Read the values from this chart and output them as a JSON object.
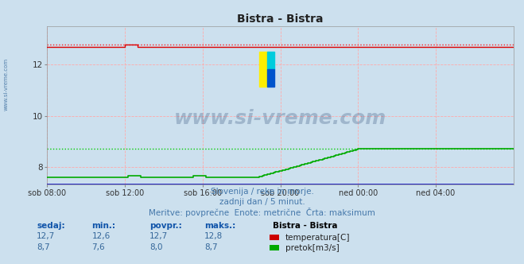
{
  "title": "Bistra - Bistra",
  "background_color": "#cce0ee",
  "plot_bg_color": "#cce0ee",
  "xlim": [
    0,
    288
  ],
  "ylim": [
    7.3,
    13.5
  ],
  "yticks": [
    8,
    10,
    12
  ],
  "x_tick_labels": [
    "sob 08:00",
    "sob 12:00",
    "sob 16:00",
    "sob 20:00",
    "ned 00:00",
    "ned 04:00"
  ],
  "x_tick_positions": [
    0,
    48,
    96,
    144,
    192,
    240
  ],
  "grid_color": "#ffaaaa",
  "temperature_color": "#dd0000",
  "temperature_max_color": "#ff2222",
  "flow_color": "#00aa00",
  "flow_max_color": "#00cc00",
  "blue_line_color": "#0000bb",
  "watermark_text": "www.si-vreme.com",
  "watermark_color": "#1a3a6a",
  "watermark_alpha": 0.25,
  "subtitle_lines": [
    "Slovenija / reke in morje.",
    "zadnji dan / 5 minut.",
    "Meritve: povprečne  Enote: metrične  Črta: maksimum"
  ],
  "subtitle_color": "#4477aa",
  "legend_title": "Bistra - Bistra",
  "legend_items": [
    "temperatura[C]",
    "pretok[m3/s]"
  ],
  "legend_colors": [
    "#cc0000",
    "#00aa00"
  ],
  "table_headers": [
    "sedaj:",
    "min.:",
    "povpr.:",
    "maks.:"
  ],
  "table_row1": [
    "12,7",
    "12,6",
    "12,7",
    "12,8"
  ],
  "table_row2": [
    "8,7",
    "7,6",
    "8,0",
    "8,7"
  ],
  "temp_baseline": 12.7,
  "temp_max_line": 12.8,
  "flow_baseline": 7.6,
  "flow_max_line": 8.7,
  "left_label": "www.si-vreme.com"
}
